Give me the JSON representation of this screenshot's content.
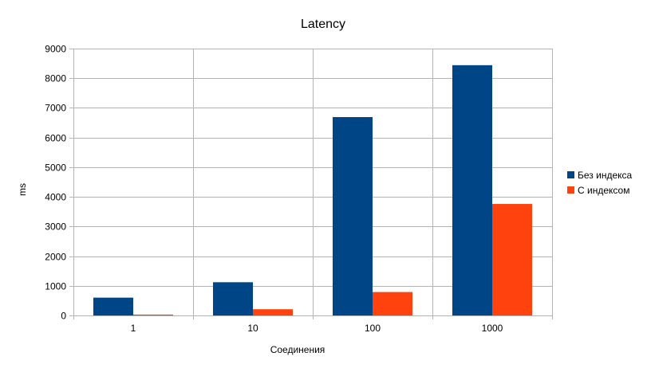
{
  "chart_data": {
    "type": "bar",
    "title": "Latency",
    "xlabel": "Соединения",
    "ylabel": "ms",
    "categories": [
      "1",
      "10",
      "100",
      "1000"
    ],
    "ylim": [
      0,
      9000
    ],
    "yticks": [
      0,
      1000,
      2000,
      3000,
      4000,
      5000,
      6000,
      7000,
      8000,
      9000
    ],
    "grid": true,
    "legend_position": "right",
    "series": [
      {
        "name": "Без индекса",
        "color": "#004586",
        "values": [
          600,
          1120,
          6690,
          8440
        ]
      },
      {
        "name": "С индексом",
        "color": "#ff420e",
        "values": [
          30,
          210,
          790,
          3760
        ]
      }
    ]
  }
}
